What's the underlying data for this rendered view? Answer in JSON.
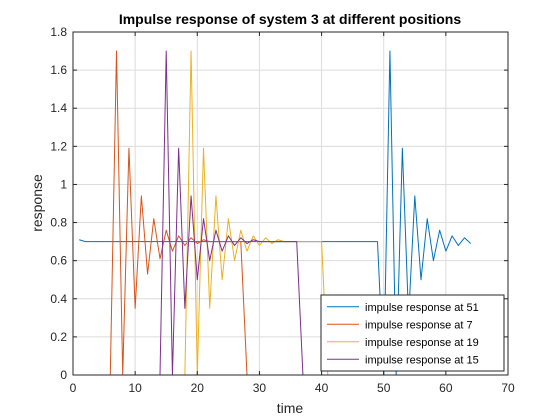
{
  "chart_data": {
    "type": "line",
    "title": "Impulse response of system 3 at different positions",
    "xlabel": "time",
    "ylabel": "response",
    "xlim": [
      0,
      70
    ],
    "ylim": [
      0,
      1.8
    ],
    "xticks": [
      "0",
      "10",
      "20",
      "30",
      "40",
      "50",
      "60",
      "70"
    ],
    "yticks": [
      "0",
      "0.2",
      "0.4",
      "0.6",
      "0.8",
      "1",
      "1.2",
      "1.4",
      "1.6",
      "1.8"
    ],
    "grid": true,
    "legend_position": "bottom-right",
    "series": [
      {
        "name": "impulse response at 51",
        "color": "#0072BD",
        "x": [
          1,
          2,
          3,
          4,
          5,
          6,
          7,
          8,
          9,
          10,
          11,
          12,
          13,
          14,
          15,
          16,
          17,
          18,
          19,
          20,
          21,
          22,
          23,
          24,
          25,
          26,
          27,
          28,
          29,
          30,
          31,
          32,
          33,
          34,
          35,
          36,
          37,
          38,
          39,
          40,
          41,
          42,
          43,
          44,
          45,
          46,
          47,
          48,
          49,
          50,
          51,
          52,
          53,
          54,
          55,
          56,
          57,
          58,
          59,
          60,
          61,
          62,
          63,
          64
        ],
        "y": [
          0.71,
          0.7,
          0.7,
          0.7,
          0.7,
          0.7,
          0.7,
          0.7,
          0.7,
          0.7,
          0.7,
          0.7,
          0.7,
          0.7,
          0.7,
          0.7,
          0.7,
          0.7,
          0.7,
          0.7,
          0.7,
          0.7,
          0.7,
          0.7,
          0.7,
          0.7,
          0.7,
          0.7,
          0.7,
          0.7,
          0.7,
          0.7,
          0.7,
          0.7,
          0.7,
          0.7,
          0.7,
          0.7,
          0.7,
          0.7,
          0.7,
          0.7,
          0.7,
          0.7,
          0.7,
          0.7,
          0.7,
          0.7,
          0.7,
          0.0,
          1.7,
          0.0,
          1.19,
          0.3,
          0.94,
          0.5,
          0.82,
          0.6,
          0.76,
          0.65,
          0.73,
          0.68,
          0.72,
          0.69
        ]
      },
      {
        "name": "impulse response at 7",
        "color": "#D95319",
        "x": [
          1,
          2,
          3,
          4,
          5,
          6,
          7,
          8,
          9,
          10,
          11,
          12,
          13,
          14,
          15,
          16,
          17,
          18,
          19,
          20,
          21,
          22,
          23,
          24,
          25,
          26,
          27,
          28,
          29,
          30,
          31,
          32,
          33,
          34,
          35,
          36,
          37,
          38,
          39,
          40,
          41,
          42,
          43,
          44,
          45,
          46,
          47,
          48,
          49,
          50,
          51,
          52,
          53,
          54,
          55,
          56,
          57,
          58,
          59,
          60,
          61,
          62,
          63,
          64
        ],
        "y": [
          0.0,
          0.0,
          0.0,
          0.0,
          0.0,
          0.0,
          1.7,
          0.0,
          1.19,
          0.35,
          0.94,
          0.53,
          0.82,
          0.61,
          0.76,
          0.65,
          0.73,
          0.68,
          0.72,
          0.69,
          0.71,
          0.7,
          0.7,
          0.7,
          0.7,
          0.7,
          0.7,
          0.0,
          0.0,
          0.0,
          0.0,
          0.0,
          0.0,
          0.0,
          0.0,
          0.0,
          0.0,
          0.0,
          0.0,
          0.0,
          0.0,
          0.0,
          0.0,
          0.0,
          0.0,
          0.0,
          0.0,
          0.0,
          0.0,
          0.0,
          0.0,
          0.0,
          0.0,
          0.0,
          0.0,
          0.0,
          0.0,
          0.0,
          0.0,
          0.0,
          0.0,
          0.0,
          0.0,
          0.0
        ]
      },
      {
        "name": "impulse response at 19",
        "color": "#EDB120",
        "x": [
          1,
          2,
          3,
          4,
          5,
          6,
          7,
          8,
          9,
          10,
          11,
          12,
          13,
          14,
          15,
          16,
          17,
          18,
          19,
          20,
          21,
          22,
          23,
          24,
          25,
          26,
          27,
          28,
          29,
          30,
          31,
          32,
          33,
          34,
          35,
          36,
          37,
          38,
          39,
          40,
          41,
          42,
          43,
          44,
          45,
          46,
          47,
          48,
          49,
          50,
          51,
          52,
          53,
          54,
          55,
          56,
          57,
          58,
          59,
          60,
          61,
          62,
          63,
          64
        ],
        "y": [
          0.0,
          0.0,
          0.0,
          0.0,
          0.0,
          0.0,
          0.0,
          0.0,
          0.0,
          0.0,
          0.0,
          0.0,
          0.0,
          0.0,
          0.0,
          0.0,
          0.0,
          0.0,
          1.7,
          0.0,
          1.19,
          0.35,
          0.94,
          0.5,
          0.82,
          0.6,
          0.76,
          0.65,
          0.73,
          0.68,
          0.72,
          0.69,
          0.71,
          0.7,
          0.7,
          0.7,
          0.7,
          0.7,
          0.7,
          0.7,
          0.0,
          0.0,
          0.0,
          0.0,
          0.0,
          0.0,
          0.0,
          0.0,
          0.0,
          0.0,
          0.0,
          0.0,
          0.0,
          0.0,
          0.0,
          0.0,
          0.0,
          0.0,
          0.0,
          0.0,
          0.0,
          0.0,
          0.0,
          0.0
        ]
      },
      {
        "name": "impulse response at 15",
        "color": "#7E2F8E",
        "x": [
          1,
          2,
          3,
          4,
          5,
          6,
          7,
          8,
          9,
          10,
          11,
          12,
          13,
          14,
          15,
          16,
          17,
          18,
          19,
          20,
          21,
          22,
          23,
          24,
          25,
          26,
          27,
          28,
          29,
          30,
          31,
          32,
          33,
          34,
          35,
          36,
          37,
          38,
          39,
          40,
          41,
          42,
          43,
          44,
          45,
          46,
          47,
          48,
          49,
          50,
          51,
          52,
          53,
          54,
          55,
          56,
          57,
          58,
          59,
          60,
          61,
          62,
          63,
          64
        ],
        "y": [
          0.0,
          0.0,
          0.0,
          0.0,
          0.0,
          0.0,
          0.0,
          0.0,
          0.0,
          0.0,
          0.0,
          0.0,
          0.0,
          0.0,
          1.7,
          0.0,
          1.19,
          0.35,
          0.94,
          0.5,
          0.82,
          0.6,
          0.76,
          0.65,
          0.73,
          0.68,
          0.72,
          0.69,
          0.71,
          0.7,
          0.7,
          0.7,
          0.7,
          0.7,
          0.7,
          0.7,
          0.0,
          0.0,
          0.0,
          0.0,
          0.0,
          0.0,
          0.0,
          0.0,
          0.0,
          0.0,
          0.0,
          0.0,
          0.0,
          0.0,
          0.0,
          0.0,
          0.0,
          0.0,
          0.0,
          0.0,
          0.0,
          0.0,
          0.0,
          0.0,
          0.0,
          0.0,
          0.0,
          0.0
        ]
      }
    ]
  }
}
